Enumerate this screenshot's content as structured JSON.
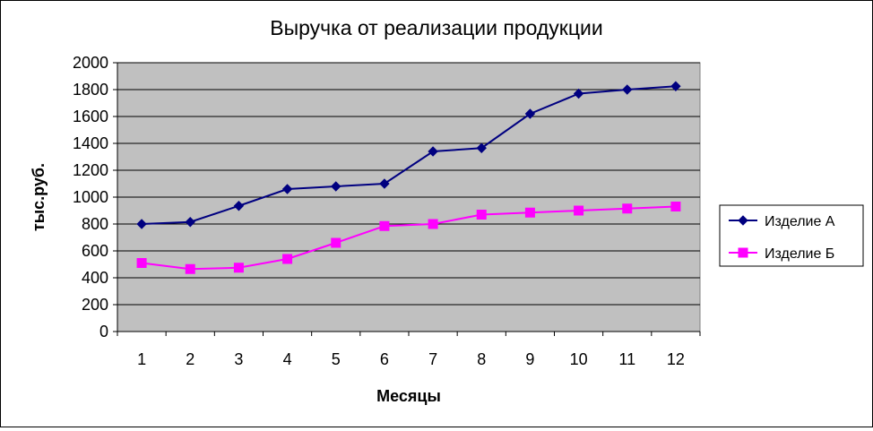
{
  "chart_data": {
    "type": "line",
    "title": "Выручка от реализации продукции",
    "xlabel": "Месяцы",
    "ylabel": "тыс.руб.",
    "categories": [
      "1",
      "2",
      "3",
      "4",
      "5",
      "6",
      "7",
      "8",
      "9",
      "10",
      "11",
      "12"
    ],
    "ylim": [
      0,
      2000
    ],
    "yticks": [
      0,
      200,
      400,
      600,
      800,
      1000,
      1200,
      1400,
      1600,
      1800,
      2000
    ],
    "grid": true,
    "legend_position": "right",
    "plot_background": "#C0C0C0",
    "series": [
      {
        "name": "Изделие А",
        "color": "#000080",
        "marker": "diamond",
        "values": [
          800,
          815,
          935,
          1060,
          1080,
          1100,
          1340,
          1365,
          1620,
          1770,
          1800,
          1825
        ]
      },
      {
        "name": "Изделие Б",
        "color": "#FF00FF",
        "marker": "square",
        "values": [
          510,
          465,
          475,
          540,
          660,
          785,
          800,
          870,
          885,
          900,
          915,
          930
        ]
      }
    ]
  }
}
